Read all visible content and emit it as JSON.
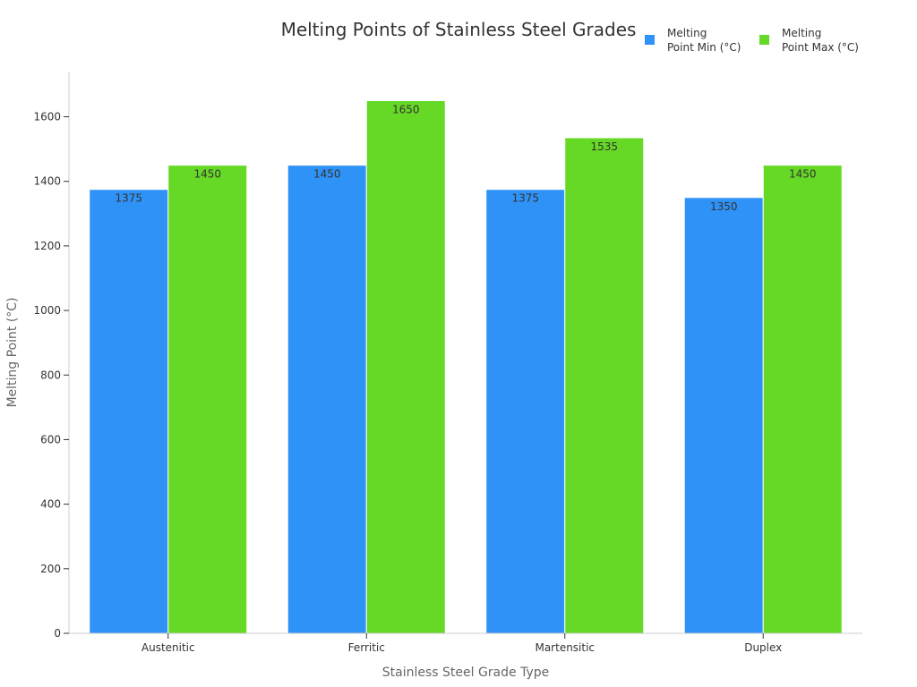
{
  "chart_data": {
    "type": "bar",
    "title": "Melting Points of Stainless Steel Grades",
    "xlabel": "Stainless Steel Grade Type",
    "ylabel": "Melting Point (°C)",
    "categories": [
      "Austenitic",
      "Ferritic",
      "Martensitic",
      "Duplex"
    ],
    "series": [
      {
        "name": "Melting Point Min (°C)",
        "legend_lines": [
          "Melting",
          "Point Min (°C)"
        ],
        "color": "#2f92f7",
        "values": [
          1375,
          1450,
          1375,
          1350
        ]
      },
      {
        "name": "Melting Point Max (°C)",
        "legend_lines": [
          "Melting",
          "Point Max (°C)"
        ],
        "color": "#66d826",
        "values": [
          1450,
          1650,
          1535,
          1450
        ]
      }
    ],
    "ylim": [
      0,
      1740
    ],
    "yticks": [
      0,
      200,
      400,
      600,
      800,
      1000,
      1200,
      1400,
      1600
    ],
    "grid": false,
    "legend_position": "top-right",
    "data_labels": true
  }
}
